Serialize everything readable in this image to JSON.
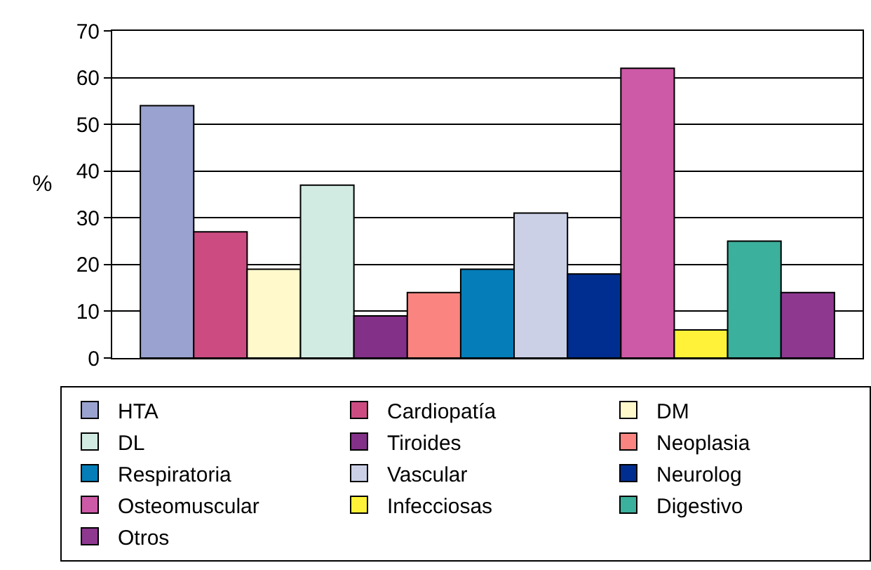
{
  "chart_data": {
    "type": "bar",
    "ylabel": "%",
    "categories": [
      null
    ],
    "ylim": [
      0,
      70
    ],
    "yticks": [
      0,
      10,
      20,
      30,
      40,
      50,
      60,
      70
    ],
    "grid": "y",
    "legend": "bottom",
    "tick_labels": "y",
    "series": [
      {
        "name": "HTA",
        "color": "#9aa3cf",
        "values": [
          54
        ]
      },
      {
        "name": "Cardiopatía",
        "color": "#cc4c82",
        "values": [
          27
        ]
      },
      {
        "name": "DM",
        "color": "#fff9cc",
        "values": [
          19
        ]
      },
      {
        "name": "DL",
        "color": "#d2ebe2",
        "values": [
          37
        ]
      },
      {
        "name": "Tiroides",
        "color": "#823088",
        "values": [
          9
        ]
      },
      {
        "name": "Neoplasia",
        "color": "#fa8580",
        "values": [
          14
        ]
      },
      {
        "name": "Respiratoria",
        "color": "#047db8",
        "values": [
          19
        ]
      },
      {
        "name": "Vascular",
        "color": "#cbd0e6",
        "values": [
          31
        ]
      },
      {
        "name": "Neurolog",
        "color": "#002e90",
        "values": [
          18
        ]
      },
      {
        "name": "Osteomuscular",
        "color": "#cd5aa6",
        "values": [
          62
        ]
      },
      {
        "name": "Infecciosas",
        "color": "#fff238",
        "values": [
          6
        ]
      },
      {
        "name": "Digestivo",
        "color": "#3bb09c",
        "values": [
          25
        ]
      },
      {
        "name": "Otros",
        "color": "#8e3890",
        "values": [
          14
        ]
      }
    ]
  }
}
